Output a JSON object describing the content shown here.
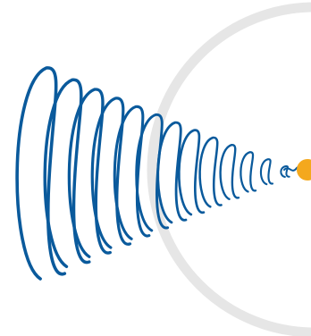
{
  "illustration": {
    "icon": "coil-spring-cone-icon",
    "ring_icon": "circle-outline-icon",
    "colors": {
      "background": "#ffffff",
      "spring": "#0a5a9c",
      "ring": "#e6e6e6",
      "dot": "#f4a81d"
    },
    "coil_count": 13
  }
}
